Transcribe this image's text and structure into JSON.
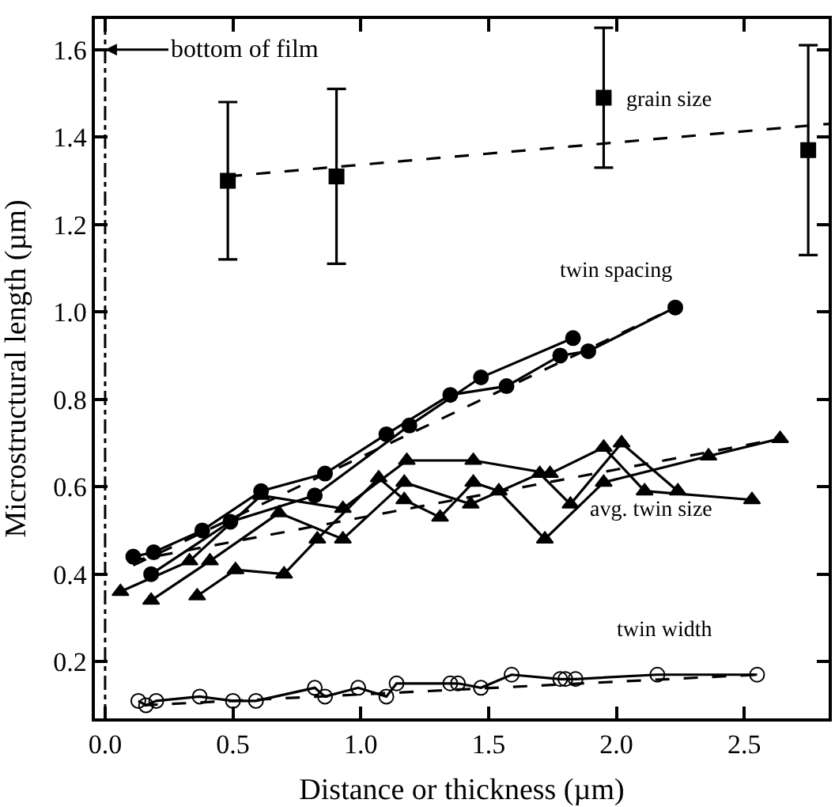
{
  "chart_data": {
    "type": "line",
    "xlabel": "Distance or thickness (µm)",
    "ylabel": "Microstructural length (µm)",
    "xlim": [
      -0.04,
      2.83
    ],
    "ylim": [
      0.07,
      1.67
    ],
    "xticks": [
      {
        "value": 0,
        "label": "0.0"
      },
      {
        "value": 0.5,
        "label": "0.5"
      },
      {
        "value": 1,
        "label": "1.0"
      },
      {
        "value": 1.5,
        "label": "1.5"
      },
      {
        "value": 2,
        "label": "2.0"
      },
      {
        "value": 2.5,
        "label": "2.5"
      }
    ],
    "yticks": [
      {
        "value": 0.2,
        "label": "0.2"
      },
      {
        "value": 0.4,
        "label": "0.4"
      },
      {
        "value": 0.6,
        "label": "0.6"
      },
      {
        "value": 0.8,
        "label": "0.8"
      },
      {
        "value": 1,
        "label": "1.0"
      },
      {
        "value": 1.2,
        "label": "1.2"
      },
      {
        "value": 1.4,
        "label": "1.4"
      },
      {
        "value": 1.6,
        "label": "1.6"
      }
    ],
    "series": [
      {
        "type": "scatter",
        "marker": "square",
        "color": "#000000",
        "x": [
          0.48,
          0.905,
          1.95,
          2.75
        ],
        "values": [
          1.3,
          1.31,
          1.49,
          1.37
        ],
        "errors": [
          [
            1.12,
            1.48
          ],
          [
            1.11,
            1.51
          ],
          [
            1.33,
            1.65
          ],
          [
            1.13,
            1.61
          ]
        ]
      },
      {
        "marker": "none",
        "line_style": "dashed",
        "color": "#000000",
        "x": [
          0.48,
          2.83
        ],
        "values": [
          1.31,
          1.43
        ]
      },
      {
        "marker": "circle",
        "line_style": "solid",
        "color": "#000000",
        "x": [
          0.11,
          0.19,
          0.38,
          0.61,
          0.86,
          1.1,
          1.35,
          1.57,
          1.78,
          1.89,
          2.23
        ],
        "values": [
          0.44,
          0.45,
          0.5,
          0.59,
          0.63,
          0.72,
          0.81,
          0.83,
          0.9,
          0.91,
          1.01
        ]
      },
      {
        "marker": "circle",
        "line_style": "solid",
        "color": "#000000",
        "x": [
          0.18,
          0.49,
          0.82,
          1.19,
          1.47,
          1.83
        ],
        "values": [
          0.4,
          0.52,
          0.58,
          0.74,
          0.85,
          0.94
        ]
      },
      {
        "marker": "none",
        "line_style": "dashed",
        "color": "#000000",
        "x": [
          0.11,
          2.23
        ],
        "values": [
          0.42,
          1.01
        ]
      },
      {
        "marker": "triangle",
        "line_style": "solid",
        "color": "#000000",
        "x": [
          0.06,
          0.33,
          0.61,
          0.93,
          1.18,
          1.44,
          1.74,
          1.95,
          2.11,
          2.53
        ],
        "values": [
          0.36,
          0.43,
          0.58,
          0.55,
          0.66,
          0.66,
          0.63,
          0.69,
          0.59,
          0.57
        ]
      },
      {
        "marker": "triangle",
        "line_style": "solid",
        "color": "#000000",
        "x": [
          0.18,
          0.41,
          0.68,
          0.93,
          1.17,
          1.43,
          1.7,
          1.82,
          2.02,
          2.24
        ],
        "values": [
          0.34,
          0.43,
          0.54,
          0.48,
          0.61,
          0.56,
          0.63,
          0.56,
          0.7,
          0.59
        ]
      },
      {
        "marker": "triangle",
        "line_style": "solid",
        "color": "#000000",
        "x": [
          0.36,
          0.51,
          0.7,
          0.83,
          1.07,
          1.17,
          1.31,
          1.44,
          1.54,
          1.72,
          1.95,
          2.36,
          2.64
        ],
        "values": [
          0.35,
          0.41,
          0.4,
          0.48,
          0.62,
          0.57,
          0.53,
          0.61,
          0.59,
          0.48,
          0.61,
          0.67,
          0.71
        ]
      },
      {
        "marker": "none",
        "line_style": "dashed",
        "color": "#000000",
        "x": [
          0.1,
          2.64
        ],
        "values": [
          0.43,
          0.71
        ]
      },
      {
        "marker": "circle-open",
        "line_style": "solid",
        "color": "#000000",
        "x": [
          0.13,
          0.16,
          0.2,
          0.37,
          0.5,
          0.59,
          0.82,
          0.86,
          0.99,
          1.1,
          1.14,
          1.35,
          1.38,
          1.47,
          1.59,
          1.78,
          1.8,
          1.84,
          2.16,
          2.55
        ],
        "values": [
          0.11,
          0.1,
          0.11,
          0.12,
          0.11,
          0.11,
          0.14,
          0.12,
          0.14,
          0.12,
          0.15,
          0.15,
          0.15,
          0.14,
          0.17,
          0.16,
          0.16,
          0.16,
          0.17,
          0.17
        ]
      },
      {
        "marker": "none",
        "line_style": "dashed",
        "color": "#000000",
        "x": [
          0.15,
          2.55
        ],
        "values": [
          0.1,
          0.17
        ]
      }
    ],
    "ref_lines": [
      {
        "axis": "x",
        "value": 0,
        "label": "bottom of film",
        "line_style": "dashdot",
        "color": "#000000"
      }
    ],
    "annotations": [
      "grain size",
      "twin spacing",
      "avg. twin size",
      "twin width"
    ]
  }
}
